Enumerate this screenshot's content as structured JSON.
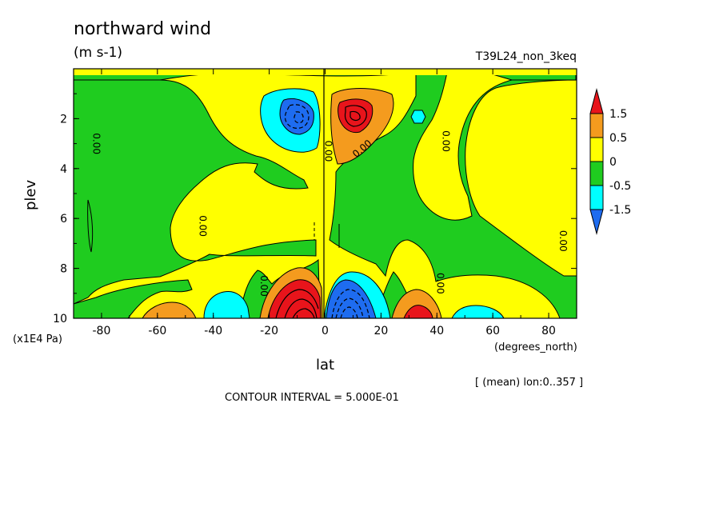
{
  "figure": {
    "title": "northward wind",
    "units": "(m s-1)",
    "run_name": "T39L24_non_3keq",
    "y_unit": "(x1E4 Pa)",
    "x_unit": "(degrees_north)",
    "x_axis_label": "lat",
    "y_axis_label": "plev",
    "averaging_note": "[ (mean) lon:0..357 ]",
    "contour_interval_text": "CONTOUR INTERVAL = 5.000E-01"
  },
  "chart_data": {
    "type": "heatmap",
    "title": "northward wind",
    "xlabel": "lat",
    "ylabel": "plev",
    "xlim": [
      -90,
      90
    ],
    "ylim": [
      10,
      0
    ],
    "x_ticks": [
      "-80",
      "-60",
      "-40",
      "-20",
      "0",
      "20",
      "40",
      "60",
      "80"
    ],
    "x_tick_values": [
      -80,
      -60,
      -40,
      -20,
      0,
      20,
      40,
      60,
      80
    ],
    "y_ticks": [
      "2",
      "4",
      "6",
      "8",
      "10"
    ],
    "y_tick_values": [
      2,
      4,
      6,
      8,
      10
    ],
    "contour_interval": 0.5,
    "contour_labels": [
      "0.00",
      "0.00",
      "0.00",
      "0.00",
      "0.00",
      "0.00",
      "0.00",
      "0.00"
    ],
    "colorbar": {
      "levels": [
        "1.5",
        "0.5",
        "0",
        "-0.5",
        "-1.5"
      ],
      "bands": [
        {
          "range": [
            1.5,
            2.5
          ],
          "color": "#e8141b"
        },
        {
          "range": [
            0.5,
            1.5
          ],
          "color": "#f49b1e"
        },
        {
          "range": [
            0,
            0.5
          ],
          "color": "#ffff00"
        },
        {
          "range": [
            -0.5,
            0
          ],
          "color": "#1fcc1f"
        },
        {
          "range": [
            -1.5,
            -0.5
          ],
          "color": "#00ffff"
        },
        {
          "range": [
            -2.5,
            -1.5
          ],
          "color": "#1e6cf0"
        }
      ]
    },
    "features": [
      {
        "sign": "negative",
        "lat": -8,
        "plev": 2.0,
        "peak": -1.5
      },
      {
        "sign": "positive",
        "lat": 8,
        "plev": 2.0,
        "peak": 1.5
      },
      {
        "sign": "positive",
        "lat": -8,
        "plev": 9.5,
        "peak": 2.0
      },
      {
        "sign": "negative",
        "lat": 8,
        "plev": 9.5,
        "peak": -2.0
      },
      {
        "sign": "positive",
        "lat": -55,
        "plev": 9.8,
        "peak": 1.0
      },
      {
        "sign": "negative",
        "lat": -33,
        "plev": 9.5,
        "peak": -1.0
      },
      {
        "sign": "positive",
        "lat": 32,
        "plev": 9.6,
        "peak": 1.0
      },
      {
        "sign": "negative",
        "lat": 58,
        "plev": 9.8,
        "peak": -0.5
      },
      {
        "sign": "negative",
        "lat": 34,
        "plev": 2.0,
        "peak": -0.5
      }
    ]
  }
}
